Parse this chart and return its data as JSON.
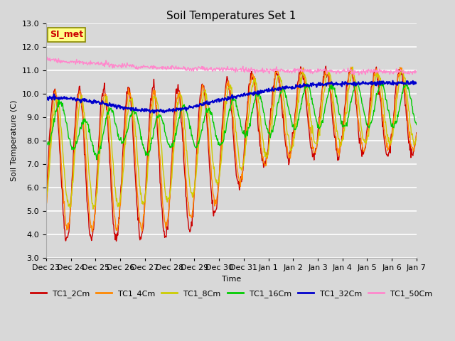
{
  "title": "Soil Temperatures Set 1",
  "xlabel": "Time",
  "ylabel": "Soil Temperature (C)",
  "ylim": [
    3.0,
    13.0
  ],
  "yticks": [
    3.0,
    4.0,
    5.0,
    6.0,
    7.0,
    8.0,
    9.0,
    10.0,
    11.0,
    12.0,
    13.0
  ],
  "series_colors": {
    "TC1_2Cm": "#cc0000",
    "TC1_4Cm": "#ff8800",
    "TC1_8Cm": "#cccc00",
    "TC1_16Cm": "#00cc00",
    "TC1_32Cm": "#0000cc",
    "TC1_50Cm": "#ff88cc"
  },
  "legend_labels": [
    "TC1_2Cm",
    "TC1_4Cm",
    "TC1_8Cm",
    "TC1_16Cm",
    "TC1_32Cm",
    "TC1_50Cm"
  ],
  "background_color": "#d8d8d8",
  "plot_bg_color": "#d8d8d8",
  "annotation_text": "SI_met",
  "annotation_bg": "#ffff88",
  "annotation_border": "#888800",
  "annotation_text_color": "#cc0000",
  "n_points": 720,
  "xtick_labels": [
    "Dec 23",
    "Dec 24",
    "Dec 25",
    "Dec 26",
    "Dec 27",
    "Dec 28",
    "Dec 29",
    "Dec 30",
    "Dec 31",
    "Jan 1",
    "Jan 2",
    "Jan 3",
    "Jan 4",
    "Jan 5",
    "Jan 6",
    "Jan 7"
  ],
  "grid_color": "#ffffff",
  "title_fontsize": 11,
  "axis_fontsize": 8,
  "legend_fontsize": 8,
  "linewidth": 1.0
}
